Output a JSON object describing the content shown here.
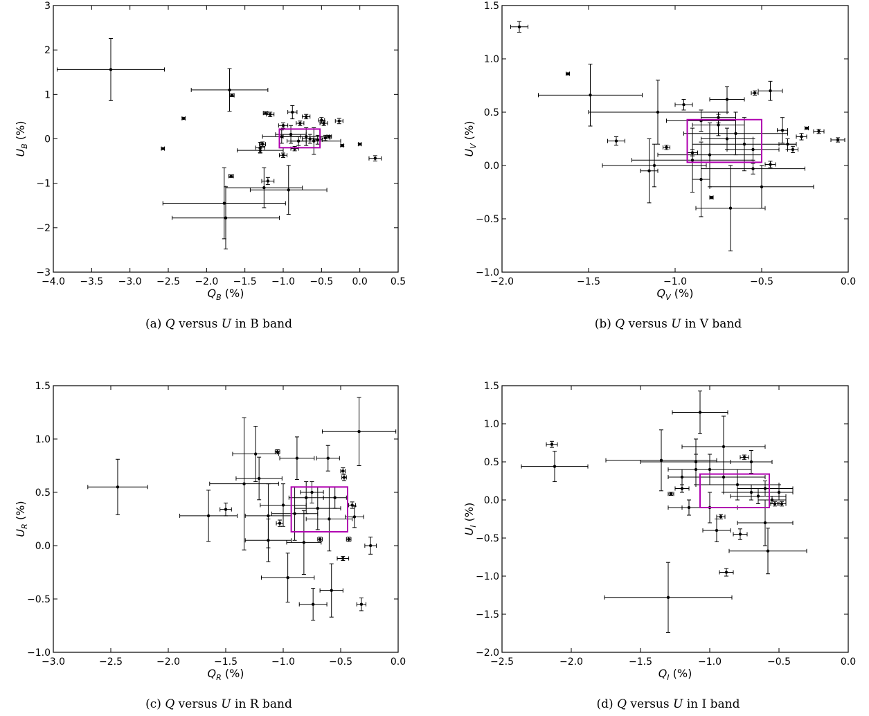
{
  "colors": {
    "points": "#000000",
    "box": "#b000b0",
    "frame": "#000000"
  },
  "chart_data": [
    {
      "type": "scatter",
      "caption": "(a) Q versus U in B band",
      "xlabel": "Q_B (%)",
      "ylabel": "U_B (%)",
      "xlim": [
        -4.0,
        0.5
      ],
      "ylim": [
        -3,
        3
      ],
      "xticks": [
        "-4.0",
        "-3.5",
        "-3.0",
        "-2.5",
        "-2.0",
        "-1.5",
        "-1.0",
        "-0.5",
        "0.0",
        "0.5"
      ],
      "yticks": [
        "-3",
        "-2",
        "-1",
        "0",
        "1",
        "2",
        "3"
      ],
      "box": {
        "x": [
          -1.05,
          -0.52
        ],
        "y": [
          -0.2,
          0.22
        ]
      },
      "points": [
        {
          "x": -3.25,
          "y": 1.56,
          "ex": 0.7,
          "ey": 0.7
        },
        {
          "x": -1.7,
          "y": 1.1,
          "ex": 0.5,
          "ey": 0.48
        },
        {
          "x": -1.67,
          "y": 0.98,
          "ex": 0.03,
          "ey": 0.03
        },
        {
          "x": -2.3,
          "y": 0.46,
          "ex": 0.02,
          "ey": 0.02
        },
        {
          "x": -2.57,
          "y": -0.22,
          "ex": 0.02,
          "ey": 0.02
        },
        {
          "x": -1.23,
          "y": 0.58,
          "ex": 0.03,
          "ey": 0.03
        },
        {
          "x": -1.17,
          "y": 0.55,
          "ex": 0.05,
          "ey": 0.05
        },
        {
          "x": -0.88,
          "y": 0.6,
          "ex": 0.06,
          "ey": 0.15
        },
        {
          "x": -0.7,
          "y": 0.5,
          "ex": 0.05,
          "ey": 0.05
        },
        {
          "x": -0.5,
          "y": 0.42,
          "ex": 0.04,
          "ey": 0.06
        },
        {
          "x": -0.27,
          "y": 0.4,
          "ex": 0.05,
          "ey": 0.06
        },
        {
          "x": -0.47,
          "y": 0.35,
          "ex": 0.05,
          "ey": 0.05
        },
        {
          "x": -1.0,
          "y": 0.3,
          "ex": 0.06,
          "ey": 0.06
        },
        {
          "x": -0.78,
          "y": 0.35,
          "ex": 0.05,
          "ey": 0.05
        },
        {
          "x": -1.02,
          "y": 0.05,
          "ex": 0.25,
          "ey": 0.15
        },
        {
          "x": -0.9,
          "y": 0.1,
          "ex": 0.2,
          "ey": 0.2
        },
        {
          "x": -0.7,
          "y": 0.05,
          "ex": 0.3,
          "ey": 0.2
        },
        {
          "x": -0.6,
          "y": -0.05,
          "ex": 0.35,
          "ey": 0.3
        },
        {
          "x": -0.8,
          "y": -0.05,
          "ex": 0.1,
          "ey": 0.1
        },
        {
          "x": -0.65,
          "y": 0.0,
          "ex": 0.1,
          "ey": 0.1
        },
        {
          "x": -0.55,
          "y": -0.02,
          "ex": 0.06,
          "ey": 0.1
        },
        {
          "x": -0.45,
          "y": 0.02,
          "ex": 0.06,
          "ey": 0.06
        },
        {
          "x": -1.0,
          "y": -0.37,
          "ex": 0.05,
          "ey": 0.05
        },
        {
          "x": -0.85,
          "y": -0.22,
          "ex": 0.05,
          "ey": 0.05
        },
        {
          "x": -1.3,
          "y": -0.2,
          "ex": 0.06,
          "ey": 0.12
        },
        {
          "x": -1.27,
          "y": -0.12,
          "ex": 0.04,
          "ey": 0.05
        },
        {
          "x": -1.3,
          "y": -0.26,
          "ex": 0.3,
          "ey": 0.05
        },
        {
          "x": -0.23,
          "y": -0.15,
          "ex": 0.02,
          "ey": 0.02
        },
        {
          "x": 0.0,
          "y": -0.12,
          "ex": 0.02,
          "ey": 0.02
        },
        {
          "x": 0.2,
          "y": -0.44,
          "ex": 0.08,
          "ey": 0.06
        },
        {
          "x": -0.4,
          "y": 0.05,
          "ex": 0.03,
          "ey": 0.03
        },
        {
          "x": -1.68,
          "y": -0.84,
          "ex": 0.03,
          "ey": 0.03
        },
        {
          "x": -1.2,
          "y": -0.95,
          "ex": 0.08,
          "ey": 0.08
        },
        {
          "x": -1.25,
          "y": -1.1,
          "ex": 0.5,
          "ey": 0.45
        },
        {
          "x": -0.93,
          "y": -1.15,
          "ex": 0.5,
          "ey": 0.55
        },
        {
          "x": -1.77,
          "y": -1.45,
          "ex": 0.8,
          "ey": 0.8
        },
        {
          "x": -1.75,
          "y": -1.78,
          "ex": 0.7,
          "ey": 0.7
        }
      ]
    },
    {
      "type": "scatter",
      "caption": "(b) Q versus U in V band",
      "xlabel": "Q_V (%)",
      "ylabel": "U_V (%)",
      "xlim": [
        -2.0,
        0.0
      ],
      "ylim": [
        -1.0,
        1.5
      ],
      "xticks": [
        "-2.0",
        "-1.5",
        "-1.0",
        "-0.5",
        "0.0"
      ],
      "yticks": [
        "-1.0",
        "-0.5",
        "0.0",
        "0.5",
        "1.0",
        "1.5"
      ],
      "box": {
        "x": [
          -0.93,
          -0.5
        ],
        "y": [
          0.03,
          0.43
        ]
      },
      "points": [
        {
          "x": -1.9,
          "y": 1.3,
          "ex": 0.05,
          "ey": 0.05
        },
        {
          "x": -1.62,
          "y": 0.86,
          "ex": 0.01,
          "ey": 0.01
        },
        {
          "x": -1.49,
          "y": 0.66,
          "ex": 0.3,
          "ey": 0.29
        },
        {
          "x": -1.34,
          "y": 0.23,
          "ex": 0.05,
          "ey": 0.04
        },
        {
          "x": -1.1,
          "y": 0.5,
          "ex": 0.4,
          "ey": 0.3
        },
        {
          "x": -1.12,
          "y": 0.0,
          "ex": 0.3,
          "ey": 0.2
        },
        {
          "x": -1.15,
          "y": -0.05,
          "ex": 0.05,
          "ey": 0.3
        },
        {
          "x": -0.95,
          "y": 0.57,
          "ex": 0.05,
          "ey": 0.05
        },
        {
          "x": -0.7,
          "y": 0.62,
          "ex": 0.1,
          "ey": 0.12
        },
        {
          "x": -0.45,
          "y": 0.7,
          "ex": 0.07,
          "ey": 0.09
        },
        {
          "x": -0.54,
          "y": 0.68,
          "ex": 0.02,
          "ey": 0.02
        },
        {
          "x": -0.85,
          "y": 0.42,
          "ex": 0.2,
          "ey": 0.1
        },
        {
          "x": -0.75,
          "y": 0.38,
          "ex": 0.15,
          "ey": 0.1
        },
        {
          "x": -0.65,
          "y": 0.3,
          "ex": 0.3,
          "ey": 0.2
        },
        {
          "x": -0.6,
          "y": 0.2,
          "ex": 0.3,
          "ey": 0.25
        },
        {
          "x": -0.8,
          "y": 0.1,
          "ex": 0.3,
          "ey": 0.3
        },
        {
          "x": -0.9,
          "y": 0.05,
          "ex": 0.35,
          "ey": 0.3
        },
        {
          "x": -0.55,
          "y": 0.15,
          "ex": 0.15,
          "ey": 0.1
        },
        {
          "x": -0.7,
          "y": 0.25,
          "ex": 0.15,
          "ey": 0.1
        },
        {
          "x": -0.75,
          "y": 0.45,
          "ex": 0.1,
          "ey": 0.05
        },
        {
          "x": -0.38,
          "y": 0.33,
          "ex": 0.03,
          "ey": 0.12
        },
        {
          "x": -0.24,
          "y": 0.35,
          "ex": 0.01,
          "ey": 0.01
        },
        {
          "x": -0.27,
          "y": 0.27,
          "ex": 0.03,
          "ey": 0.03
        },
        {
          "x": -0.17,
          "y": 0.32,
          "ex": 0.03,
          "ey": 0.02
        },
        {
          "x": -0.06,
          "y": 0.24,
          "ex": 0.04,
          "ey": 0.02
        },
        {
          "x": -0.32,
          "y": 0.15,
          "ex": 0.03,
          "ey": 0.03
        },
        {
          "x": -0.35,
          "y": 0.2,
          "ex": 0.05,
          "ey": 0.05
        },
        {
          "x": -0.45,
          "y": 0.01,
          "ex": 0.03,
          "ey": 0.03
        },
        {
          "x": -0.85,
          "y": -0.13,
          "ex": 0.05,
          "ey": 0.35
        },
        {
          "x": -0.79,
          "y": -0.3,
          "ex": 0.01,
          "ey": 0.01
        },
        {
          "x": -0.68,
          "y": -0.4,
          "ex": 0.2,
          "ey": 0.4
        },
        {
          "x": -0.5,
          "y": -0.2,
          "ex": 0.3,
          "ey": 0.2
        },
        {
          "x": -1.05,
          "y": 0.17,
          "ex": 0.02,
          "ey": 0.02
        },
        {
          "x": -0.9,
          "y": 0.12,
          "ex": 0.03,
          "ey": 0.03
        },
        {
          "x": -0.55,
          "y": -0.03,
          "ex": 0.3,
          "ey": 0.05
        }
      ]
    },
    {
      "type": "scatter",
      "caption": "(c) Q versus U in R band",
      "xlabel": "Q_R (%)",
      "ylabel": "U_R (%)",
      "xlim": [
        -3.0,
        0.0
      ],
      "ylim": [
        -1.0,
        1.5
      ],
      "xticks": [
        "-3.0",
        "-2.5",
        "-2.0",
        "-1.5",
        "-1.0",
        "-0.5",
        "0.0"
      ],
      "yticks": [
        "-1.0",
        "-0.5",
        "0.0",
        "0.5",
        "1.0",
        "1.5"
      ],
      "box": {
        "x": [
          -0.93,
          -0.44
        ],
        "y": [
          0.13,
          0.55
        ]
      },
      "points": [
        {
          "x": -2.44,
          "y": 0.55,
          "ex": 0.26,
          "ey": 0.26
        },
        {
          "x": -1.65,
          "y": 0.28,
          "ex": 0.25,
          "ey": 0.24
        },
        {
          "x": -1.34,
          "y": 0.58,
          "ex": 0.3,
          "ey": 0.62
        },
        {
          "x": -1.21,
          "y": 0.63,
          "ex": 0.2,
          "ey": 0.2
        },
        {
          "x": -1.24,
          "y": 0.86,
          "ex": 0.2,
          "ey": 0.26
        },
        {
          "x": -1.05,
          "y": 0.88,
          "ex": 0.02,
          "ey": 0.02
        },
        {
          "x": -0.88,
          "y": 0.82,
          "ex": 0.15,
          "ey": 0.2
        },
        {
          "x": -0.61,
          "y": 0.82,
          "ex": 0.1,
          "ey": 0.12
        },
        {
          "x": -0.34,
          "y": 1.07,
          "ex": 0.32,
          "ey": 0.32
        },
        {
          "x": -1.5,
          "y": 0.34,
          "ex": 0.05,
          "ey": 0.06
        },
        {
          "x": -1.13,
          "y": 0.28,
          "ex": 0.2,
          "ey": 0.3
        },
        {
          "x": -1.13,
          "y": 0.05,
          "ex": 0.2,
          "ey": 0.2
        },
        {
          "x": -1.0,
          "y": 0.38,
          "ex": 0.2,
          "ey": 0.2
        },
        {
          "x": -0.9,
          "y": 0.3,
          "ex": 0.2,
          "ey": 0.25
        },
        {
          "x": -0.8,
          "y": 0.45,
          "ex": 0.15,
          "ey": 0.15
        },
        {
          "x": -0.75,
          "y": 0.5,
          "ex": 0.1,
          "ey": 0.1
        },
        {
          "x": -0.7,
          "y": 0.35,
          "ex": 0.2,
          "ey": 0.2
        },
        {
          "x": -0.6,
          "y": 0.25,
          "ex": 0.2,
          "ey": 0.3
        },
        {
          "x": -0.55,
          "y": 0.45,
          "ex": 0.1,
          "ey": 0.1
        },
        {
          "x": -0.48,
          "y": 0.7,
          "ex": 0.02,
          "ey": 0.03
        },
        {
          "x": -0.47,
          "y": 0.64,
          "ex": 0.02,
          "ey": 0.03
        },
        {
          "x": -0.4,
          "y": 0.38,
          "ex": 0.03,
          "ey": 0.03
        },
        {
          "x": -0.38,
          "y": 0.27,
          "ex": 0.08,
          "ey": 0.1
        },
        {
          "x": -0.43,
          "y": 0.06,
          "ex": 0.02,
          "ey": 0.02
        },
        {
          "x": -0.68,
          "y": 0.06,
          "ex": 0.02,
          "ey": 0.02
        },
        {
          "x": -0.82,
          "y": 0.03,
          "ex": 0.15,
          "ey": 0.3
        },
        {
          "x": -1.03,
          "y": 0.21,
          "ex": 0.03,
          "ey": 0.03
        },
        {
          "x": -0.48,
          "y": -0.12,
          "ex": 0.05,
          "ey": 0.02
        },
        {
          "x": -0.24,
          "y": 0.0,
          "ex": 0.05,
          "ey": 0.08
        },
        {
          "x": -0.96,
          "y": -0.3,
          "ex": 0.23,
          "ey": 0.23
        },
        {
          "x": -0.58,
          "y": -0.42,
          "ex": 0.1,
          "ey": 0.25
        },
        {
          "x": -0.74,
          "y": -0.55,
          "ex": 0.12,
          "ey": 0.15
        },
        {
          "x": -0.32,
          "y": -0.55,
          "ex": 0.04,
          "ey": 0.06
        }
      ]
    },
    {
      "type": "scatter",
      "caption": "(d) Q versus U in I band",
      "xlabel": "Q_I (%)",
      "ylabel": "U_I (%)",
      "xlim": [
        -2.5,
        0.0
      ],
      "ylim": [
        -2.0,
        1.5
      ],
      "xticks": [
        "-2.5",
        "-2.0",
        "-1.5",
        "-1.0",
        "-0.5",
        "0.0"
      ],
      "yticks": [
        "-2.0",
        "-1.5",
        "-1.0",
        "-0.5",
        "0.0",
        "0.5",
        "1.0",
        "1.5"
      ],
      "box": {
        "x": [
          -1.07,
          -0.57
        ],
        "y": [
          -0.1,
          0.34
        ]
      },
      "points": [
        {
          "x": -2.14,
          "y": 0.73,
          "ex": 0.04,
          "ey": 0.04
        },
        {
          "x": -2.12,
          "y": 0.44,
          "ex": 0.24,
          "ey": 0.2
        },
        {
          "x": -1.07,
          "y": 1.15,
          "ex": 0.2,
          "ey": 0.28
        },
        {
          "x": -0.9,
          "y": 0.7,
          "ex": 0.3,
          "ey": 0.4
        },
        {
          "x": -1.35,
          "y": 0.52,
          "ex": 0.4,
          "ey": 0.4
        },
        {
          "x": -1.2,
          "y": 0.3,
          "ex": 0.1,
          "ey": 0.1
        },
        {
          "x": -1.1,
          "y": 0.5,
          "ex": 0.4,
          "ey": 0.3
        },
        {
          "x": -1.1,
          "y": 0.4,
          "ex": 0.2,
          "ey": 0.2
        },
        {
          "x": -1.0,
          "y": 0.4,
          "ex": 0.3,
          "ey": 0.2
        },
        {
          "x": -0.9,
          "y": 0.3,
          "ex": 0.3,
          "ey": 0.2
        },
        {
          "x": -0.8,
          "y": 0.2,
          "ex": 0.3,
          "ey": 0.2
        },
        {
          "x": -0.7,
          "y": 0.1,
          "ex": 0.2,
          "ey": 0.1
        },
        {
          "x": -0.65,
          "y": 0.05,
          "ex": 0.2,
          "ey": 0.1
        },
        {
          "x": -0.6,
          "y": 0.15,
          "ex": 0.2,
          "ey": 0.1
        },
        {
          "x": -0.55,
          "y": 0.0,
          "ex": 0.1,
          "ey": 0.05
        },
        {
          "x": -0.5,
          "y": 0.1,
          "ex": 0.1,
          "ey": 0.1
        },
        {
          "x": -0.53,
          "y": -0.05,
          "ex": 0.03,
          "ey": 0.03
        },
        {
          "x": -0.48,
          "y": -0.05,
          "ex": 0.03,
          "ey": 0.03
        },
        {
          "x": -0.75,
          "y": 0.56,
          "ex": 0.03,
          "ey": 0.03
        },
        {
          "x": -0.7,
          "y": 0.5,
          "ex": 0.15,
          "ey": 0.15
        },
        {
          "x": -1.2,
          "y": 0.15,
          "ex": 0.05,
          "ey": 0.05
        },
        {
          "x": -1.28,
          "y": 0.08,
          "ex": 0.02,
          "ey": 0.02
        },
        {
          "x": -1.15,
          "y": -0.1,
          "ex": 0.15,
          "ey": 0.1
        },
        {
          "x": -1.0,
          "y": -0.1,
          "ex": 0.2,
          "ey": 0.2
        },
        {
          "x": -0.92,
          "y": -0.22,
          "ex": 0.03,
          "ey": 0.03
        },
        {
          "x": -0.95,
          "y": -0.4,
          "ex": 0.1,
          "ey": 0.15
        },
        {
          "x": -0.78,
          "y": -0.45,
          "ex": 0.05,
          "ey": 0.07
        },
        {
          "x": -0.6,
          "y": -0.3,
          "ex": 0.2,
          "ey": 0.3
        },
        {
          "x": -0.58,
          "y": -0.67,
          "ex": 0.28,
          "ey": 0.3
        },
        {
          "x": -0.88,
          "y": -0.95,
          "ex": 0.05,
          "ey": 0.05
        },
        {
          "x": -1.3,
          "y": -1.28,
          "ex": 0.46,
          "ey": 0.46
        }
      ]
    }
  ]
}
